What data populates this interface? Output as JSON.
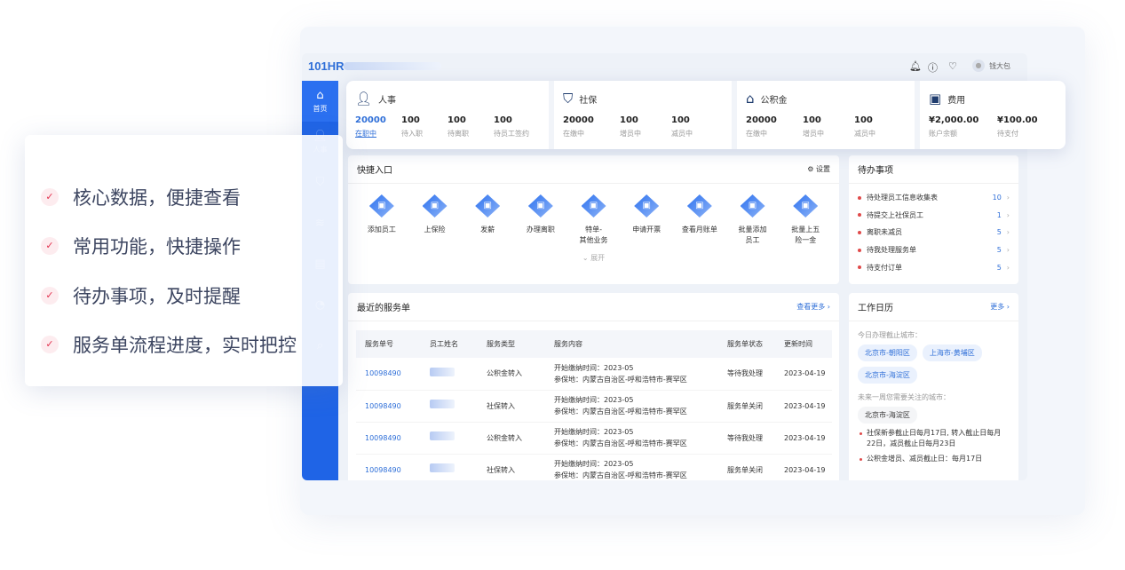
{
  "feature_list": [
    "核心数据，便捷查看",
    "常用功能，快捷操作",
    "待办事项，及时提醒",
    "服务单流程进度，实时把控"
  ],
  "app": {
    "logo": "101HR",
    "user_name": "钱大包"
  },
  "sidebar": {
    "items": [
      {
        "label": "首页",
        "icon": "home-icon"
      },
      {
        "label": "人事",
        "icon": "person-icon"
      },
      {
        "label": "",
        "icon": "shield-icon"
      },
      {
        "label": "",
        "icon": "database-icon"
      },
      {
        "label": "",
        "icon": "bill-icon"
      },
      {
        "label": "",
        "icon": "pie-chart-icon"
      },
      {
        "label": "",
        "icon": "document-search-icon"
      }
    ]
  },
  "stats": [
    {
      "title": "人事",
      "icon": "person-icon",
      "items": [
        {
          "n": "20000",
          "l": "在职中"
        },
        {
          "n": "100",
          "l": "待入职"
        },
        {
          "n": "100",
          "l": "待离职"
        },
        {
          "n": "100",
          "l": "待员工签约"
        }
      ]
    },
    {
      "title": "社保",
      "icon": "shield-icon",
      "items": [
        {
          "n": "20000",
          "l": "在缴中"
        },
        {
          "n": "100",
          "l": "增员中"
        },
        {
          "n": "100",
          "l": "减员中"
        }
      ]
    },
    {
      "title": "公积金",
      "icon": "house-icon",
      "items": [
        {
          "n": "20000",
          "l": "在缴中"
        },
        {
          "n": "100",
          "l": "增员中"
        },
        {
          "n": "100",
          "l": "减员中"
        }
      ]
    },
    {
      "title": "费用",
      "icon": "wallet-icon",
      "items": [
        {
          "n": "¥2,000.00",
          "l": "账户余额"
        },
        {
          "n": "¥100.00",
          "l": "待支付"
        }
      ]
    }
  ],
  "quick": {
    "title": "快捷入口",
    "settings": "设置",
    "expand": "展开",
    "items": [
      "添加员工",
      "上保险",
      "发薪",
      "办理离职",
      "特单-\n其他业务",
      "申请开票",
      "查看月账单",
      "批量添加\n员工",
      "批量上五\n险一金"
    ]
  },
  "todo": {
    "title": "待办事项",
    "items": [
      {
        "label": "待处理员工信息收集表",
        "count": "10"
      },
      {
        "label": "待提交上社保员工",
        "count": "1"
      },
      {
        "label": "离职未减员",
        "count": "5"
      },
      {
        "label": "待我处理服务单",
        "count": "5"
      },
      {
        "label": "待支付订单",
        "count": "5"
      }
    ]
  },
  "orders": {
    "title": "最近的服务单",
    "more": "查看更多",
    "columns": [
      "服务单号",
      "员工姓名",
      "服务类型",
      "服务内容",
      "服务单状态",
      "更新时间"
    ],
    "rows": [
      {
        "id": "10098490",
        "type": "公积金转入",
        "c1": "开始缴纳时间：2023-05",
        "c2": "参保地：内蒙古自治区-呼和浩特市-赛罕区",
        "status": "等待我处理",
        "time": "2023-04-19"
      },
      {
        "id": "10098490",
        "type": "社保转入",
        "c1": "开始缴纳时间：2023-05",
        "c2": "参保地：内蒙古自治区-呼和浩特市-赛罕区",
        "status": "服务单关闭",
        "time": "2023-04-19"
      },
      {
        "id": "10098490",
        "type": "公积金转入",
        "c1": "开始缴纳时间：2023-05",
        "c2": "参保地：内蒙古自治区-呼和浩特市-赛罕区",
        "status": "等待我处理",
        "time": "2023-04-19"
      },
      {
        "id": "10098490",
        "type": "社保转入",
        "c1": "开始缴纳时间：2023-05",
        "c2": "参保地：内蒙古自治区-呼和浩特市-赛罕区",
        "status": "服务单关闭",
        "time": "2023-04-19"
      }
    ]
  },
  "calendar": {
    "title": "工作日历",
    "more": "更多",
    "today_label": "今日办理截止城市：",
    "today_cities": [
      "北京市-朝阳区",
      "上海市-黄埔区",
      "北京市-海淀区"
    ],
    "week_label": "未来一周您需要关注的城市：",
    "week_city": "北京市-海淀区",
    "notes": [
      "社保新参截止日每月17日, 转入截止日每月22日，减员截止日每月23日",
      "公积金增员、减员截止日：每月17日"
    ]
  }
}
